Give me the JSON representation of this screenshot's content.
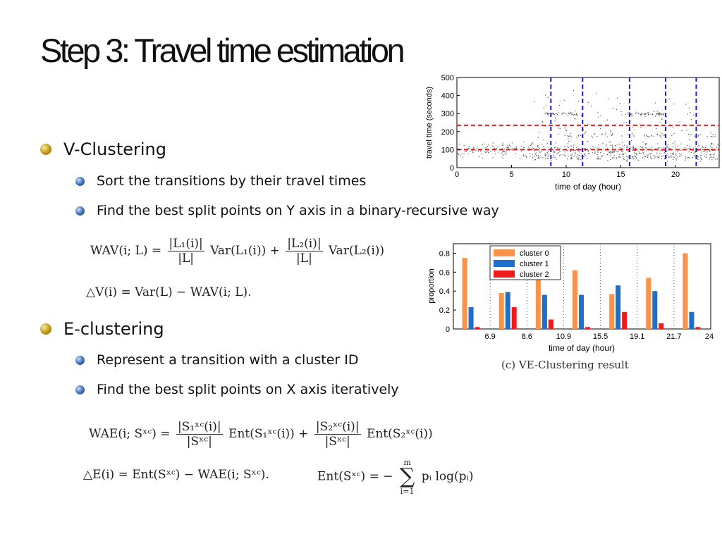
{
  "slide": {
    "title": "Step 3: Travel time estimation",
    "bullets": [
      {
        "text": "V-Clustering",
        "sub": [
          "Sort the transitions by their travel times",
          "Find the best split points  on Y axis in a binary-recursive way"
        ]
      },
      {
        "text": "E-clustering",
        "sub": [
          "Represent a transition with a cluster ID",
          "Find the best split points on X axis iteratively"
        ]
      }
    ],
    "caption": "(c) VE-Clustering result"
  },
  "equations": {
    "wav_lhs": "WAV(i; L) =",
    "wav_num1": "|L₁(i)|",
    "wav_den1": "|L|",
    "wav_t1": "Var(L₁(i)) +",
    "wav_num2": "|L₂(i)|",
    "wav_den2": "|L|",
    "wav_t2": "Var(L₂(i))",
    "dv": "△V(i) = Var(L) − WAV(i; L).",
    "wae_lhs": "WAE(i; Sˣᶜ) =",
    "wae_num1": "|S₁ˣᶜ(i)|",
    "wae_den1": "|Sˣᶜ|",
    "wae_t1": "Ent(S₁ˣᶜ(i)) +",
    "wae_num2": "|S₂ˣᶜ(i)|",
    "wae_den2": "|Sˣᶜ|",
    "wae_t2": "Ent(S₂ˣᶜ(i))",
    "de": "△E(i) = Ent(Sˣᶜ) − WAE(i; Sˣᶜ).",
    "ent_lhs": "Ent(Sˣᶜ) = −",
    "sum_top": "m",
    "sum_sym": "∑",
    "sum_bot": "i=1",
    "ent_rhs": "pᵢ log(pᵢ)"
  },
  "chart_data": [
    {
      "type": "scatter",
      "xlabel": "time of day (hour)",
      "ylabel": "travel time (seconds)",
      "xlim": [
        0,
        24
      ],
      "ylim": [
        0,
        500
      ],
      "xticks": [
        0,
        5,
        10,
        15,
        20
      ],
      "yticks": [
        0,
        100,
        200,
        300,
        400,
        500
      ],
      "grid": false,
      "vertical_splits": [
        8.6,
        11.5,
        15.8,
        19.1,
        21.9
      ],
      "horizontal_splits": [
        100,
        235
      ],
      "split_colors": {
        "vertical": "#1a1ad6",
        "horizontal": "#e81b1b"
      },
      "point_color": "#555555"
    },
    {
      "type": "bar",
      "xlabel": "time of day (hour)",
      "ylabel": "proportion",
      "ylim": [
        0,
        0.9
      ],
      "yticks": [
        0,
        0.2,
        0.4,
        0.6,
        0.8
      ],
      "xtick_labels": [
        "6.9",
        "8.6",
        "10.9",
        "15.5",
        "19.1",
        "21.7",
        "24"
      ],
      "legend_position": "top-left",
      "series": [
        {
          "name": "cluster 0",
          "color": "#f7934a",
          "values": [
            0.75,
            0.38,
            0.53,
            0.62,
            0.37,
            0.54,
            0.8
          ]
        },
        {
          "name": "cluster 1",
          "color": "#1f6ec9",
          "values": [
            0.23,
            0.39,
            0.36,
            0.36,
            0.46,
            0.4,
            0.18
          ]
        },
        {
          "name": "cluster 2",
          "color": "#ec1c1c",
          "values": [
            0.02,
            0.23,
            0.1,
            0.02,
            0.18,
            0.06,
            0.02
          ]
        }
      ]
    }
  ]
}
